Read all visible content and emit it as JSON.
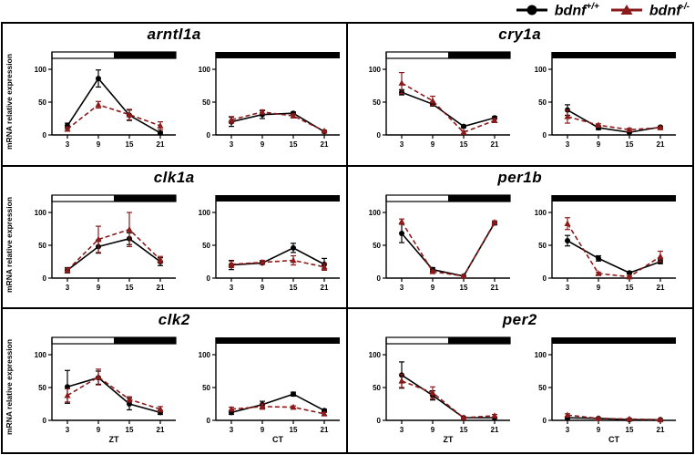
{
  "colors": {
    "wildtype": "#000000",
    "knockout": "#8B1A1A",
    "background": "#ffffff",
    "frame": "#000000",
    "light_bar_fill": "#ffffff",
    "dark_bar_fill": "#000000"
  },
  "legend": {
    "items": [
      {
        "gene": "bdnf",
        "sup": "+/+",
        "marker": "circle",
        "line": "solid",
        "color": "#000000"
      },
      {
        "gene": "bdnf",
        "sup": "-/-",
        "marker": "triangle",
        "line": "dashed",
        "color": "#8B1A1A"
      }
    ]
  },
  "axes": {
    "ylabel": "mRNA relative expression",
    "yticks": [
      0,
      50,
      100
    ],
    "xticks": [
      3,
      9,
      15,
      21
    ],
    "ylim": [
      0,
      115
    ],
    "xlim": [
      0,
      24
    ]
  },
  "chart_data": [
    {
      "type": "line",
      "gene": "arntl1a",
      "grid_row": 0,
      "grid_col": 0,
      "subplots": [
        {
          "id": "zt",
          "light_bar": "light-dark",
          "xlabel": "",
          "show_ylabel": true,
          "x": [
            3,
            9,
            15,
            21
          ],
          "series": [
            {
              "name": "bdnf +/+",
              "values": [
                14,
                86,
                30,
                3
              ],
              "errors": [
                4,
                13,
                8,
                2
              ]
            },
            {
              "name": "bdnf -/-",
              "values": [
                9,
                46,
                31,
                14
              ],
              "errors": [
                3,
                5,
                8,
                6
              ]
            }
          ]
        },
        {
          "id": "ct",
          "light_bar": "dark-dark",
          "xlabel": "",
          "show_ylabel": false,
          "x": [
            3,
            9,
            15,
            21
          ],
          "series": [
            {
              "name": "bdnf +/+",
              "values": [
                20,
                31,
                33,
                5
              ],
              "errors": [
                7,
                6,
                2,
                1
              ]
            },
            {
              "name": "bdnf -/-",
              "values": [
                23,
                35,
                29,
                6
              ],
              "errors": [
                5,
                3,
                3,
                1
              ]
            }
          ]
        }
      ]
    },
    {
      "type": "line",
      "gene": "cry1a",
      "grid_row": 0,
      "grid_col": 1,
      "subplots": [
        {
          "id": "zt",
          "light_bar": "light-dark",
          "xlabel": "",
          "show_ylabel": false,
          "x": [
            3,
            9,
            15,
            21
          ],
          "series": [
            {
              "name": "bdnf +/+",
              "values": [
                65,
                47,
                13,
                26
              ],
              "errors": [
                4,
                3,
                2,
                2
              ]
            },
            {
              "name": "bdnf -/-",
              "values": [
                79,
                52,
                4,
                22
              ],
              "errors": [
                16,
                7,
                2,
                3
              ]
            }
          ]
        },
        {
          "id": "ct",
          "light_bar": "dark-dark",
          "xlabel": "",
          "show_ylabel": false,
          "x": [
            3,
            9,
            15,
            21
          ],
          "series": [
            {
              "name": "bdnf +/+",
              "values": [
                38,
                11,
                4,
                12
              ],
              "errors": [
                8,
                3,
                1,
                1
              ]
            },
            {
              "name": "bdnf -/-",
              "values": [
                28,
                15,
                8,
                11
              ],
              "errors": [
                10,
                2,
                2,
                1
              ]
            }
          ]
        }
      ]
    },
    {
      "type": "line",
      "gene": "clk1a",
      "grid_row": 1,
      "grid_col": 0,
      "subplots": [
        {
          "id": "zt",
          "light_bar": "light-dark",
          "xlabel": "",
          "show_ylabel": true,
          "x": [
            3,
            9,
            15,
            21
          ],
          "series": [
            {
              "name": "bdnf +/+",
              "values": [
                12,
                48,
                60,
                25
              ],
              "errors": [
                4,
                10,
                9,
                6
              ]
            },
            {
              "name": "bdnf -/-",
              "values": [
                12,
                59,
                74,
                28
              ],
              "errors": [
                3,
                20,
                26,
                5
              ]
            }
          ]
        },
        {
          "id": "ct",
          "light_bar": "dark-dark",
          "xlabel": "",
          "show_ylabel": false,
          "x": [
            3,
            9,
            15,
            21
          ],
          "series": [
            {
              "name": "bdnf +/+",
              "values": [
                20,
                23,
                46,
                21
              ],
              "errors": [
                7,
                2,
                7,
                9
              ]
            },
            {
              "name": "bdnf -/-",
              "values": [
                21,
                24,
                27,
                17
              ],
              "errors": [
                5,
                3,
                7,
                5
              ]
            }
          ]
        }
      ]
    },
    {
      "type": "line",
      "gene": "per1b",
      "grid_row": 1,
      "grid_col": 1,
      "subplots": [
        {
          "id": "zt",
          "light_bar": "light-dark",
          "xlabel": "",
          "show_ylabel": false,
          "x": [
            3,
            9,
            15,
            21
          ],
          "series": [
            {
              "name": "bdnf +/+",
              "values": [
                68,
                13,
                3,
                84
              ],
              "errors": [
                14,
                3,
                1,
                3
              ]
            },
            {
              "name": "bdnf -/-",
              "values": [
                86,
                10,
                3,
                85
              ],
              "errors": [
                4,
                2,
                1,
                2
              ]
            }
          ]
        },
        {
          "id": "ct",
          "light_bar": "dark-dark",
          "xlabel": "",
          "show_ylabel": false,
          "x": [
            3,
            9,
            15,
            21
          ],
          "series": [
            {
              "name": "bdnf +/+",
              "values": [
                57,
                30,
                8,
                25
              ],
              "errors": [
                8,
                4,
                2,
                3
              ]
            },
            {
              "name": "bdnf -/-",
              "values": [
                83,
                7,
                2,
                33
              ],
              "errors": [
                9,
                2,
                1,
                8
              ]
            }
          ]
        }
      ]
    },
    {
      "type": "line",
      "gene": "clk2",
      "grid_row": 2,
      "grid_col": 0,
      "subplots": [
        {
          "id": "zt",
          "light_bar": "light-dark",
          "xlabel": "ZT",
          "show_ylabel": true,
          "x": [
            3,
            9,
            15,
            21
          ],
          "series": [
            {
              "name": "bdnf +/+",
              "values": [
                51,
                65,
                25,
                12
              ],
              "errors": [
                25,
                10,
                9,
                3
              ]
            },
            {
              "name": "bdnf -/-",
              "values": [
                38,
                66,
                32,
                17
              ],
              "errors": [
                10,
                12,
                4,
                4
              ]
            }
          ]
        },
        {
          "id": "ct",
          "light_bar": "dark-dark",
          "xlabel": "CT",
          "show_ylabel": false,
          "x": [
            3,
            9,
            15,
            21
          ],
          "series": [
            {
              "name": "bdnf +/+",
              "values": [
                12,
                24,
                40,
                15
              ],
              "errors": [
                3,
                5,
                3,
                2
              ]
            },
            {
              "name": "bdnf -/-",
              "values": [
                17,
                21,
                20,
                10
              ],
              "errors": [
                3,
                4,
                2,
                2
              ]
            }
          ]
        }
      ]
    },
    {
      "type": "line",
      "gene": "per2",
      "grid_row": 2,
      "grid_col": 1,
      "subplots": [
        {
          "id": "zt",
          "light_bar": "light-dark",
          "xlabel": "ZT",
          "show_ylabel": false,
          "x": [
            3,
            9,
            15,
            21
          ],
          "series": [
            {
              "name": "bdnf +/+",
              "values": [
                69,
                38,
                4,
                4
              ],
              "errors": [
                20,
                7,
                1,
                1
              ]
            },
            {
              "name": "bdnf -/-",
              "values": [
                60,
                42,
                4,
                7
              ],
              "errors": [
                10,
                9,
                1,
                2
              ]
            }
          ]
        },
        {
          "id": "ct",
          "light_bar": "dark-dark",
          "xlabel": "CT",
          "show_ylabel": false,
          "x": [
            3,
            9,
            15,
            21
          ],
          "series": [
            {
              "name": "bdnf +/+",
              "values": [
                4,
                3,
                1,
                1
              ],
              "errors": [
                2,
                1,
                1,
                1
              ]
            },
            {
              "name": "bdnf -/-",
              "values": [
                8,
                3,
                2,
                1
              ],
              "errors": [
                2,
                1,
                1,
                1
              ]
            }
          ]
        }
      ]
    }
  ]
}
